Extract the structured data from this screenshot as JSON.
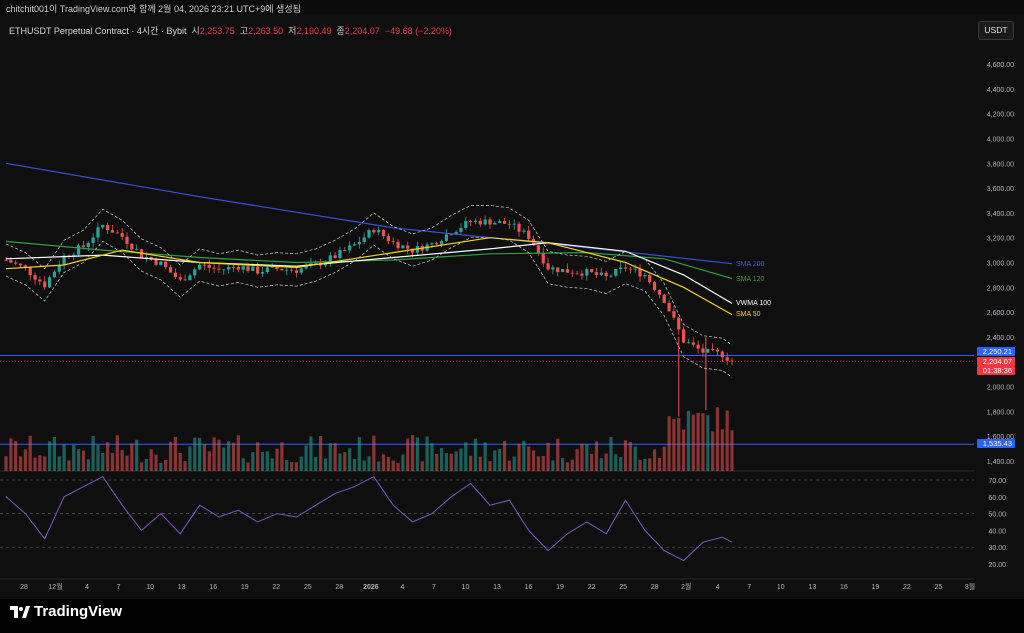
{
  "header": {
    "text": "chitchit001이 TradingView.com와 함께 2월 04, 2026 23:21 UTC+9에 생성됨"
  },
  "legend": {
    "symbol": "ETHUSDT Perpetual Contract · 4시간 · Bybit",
    "open_label": "시",
    "open": "2,253.75",
    "high_label": "고",
    "high": "2,263.50",
    "low_label": "저",
    "low": "2,190.49",
    "close_label": "종",
    "close": "2,204.07",
    "change": "−49.68 (−2.20%)"
  },
  "currency_button": "USDT",
  "footer": {
    "brand": "TradingView"
  },
  "colors": {
    "up": "#26a69a",
    "down": "#ef5350",
    "sma200": "#3f51d9",
    "sma120": "#2ea043",
    "vwma100": "#ffffff",
    "sma50": "#f2d21b",
    "rsi": "#7e57c2",
    "price_tag_red": "#f23645",
    "price_tag_blue": "#2962ff"
  },
  "chart_data": {
    "type": "candlestick",
    "title": "ETHUSDT Perpetual Contract · 4시간 · Bybit",
    "price_axis": {
      "ticks": [
        "4,600.00",
        "4,400.00",
        "4,200.00",
        "4,000.00",
        "3,800.00",
        "3,600.00",
        "3,400.00",
        "3,200.00",
        "3,000.00",
        "2,800.00",
        "2,600.00",
        "2,400.00",
        "2,000.00",
        "1,800.00",
        "1,600.00",
        "1,400.00"
      ],
      "ylim": [
        1400,
        4700
      ]
    },
    "rsi_axis": {
      "ticks": [
        "70.00",
        "60.00",
        "50.00",
        "40.00",
        "30.00",
        "20.00"
      ],
      "ylim": [
        10,
        80
      ]
    },
    "time_axis": {
      "ticks": [
        "28",
        "12월",
        "4",
        "7",
        "10",
        "13",
        "16",
        "19",
        "22",
        "25",
        "28",
        "2026",
        "4",
        "7",
        "10",
        "13",
        "16",
        "19",
        "22",
        "25",
        "28",
        "2월",
        "4",
        "7",
        "10",
        "13",
        "16",
        "19",
        "22",
        "25",
        "3월"
      ]
    },
    "price_path": [
      {
        "t": 0,
        "v": 3020
      },
      {
        "t": 2,
        "v": 2950
      },
      {
        "t": 4,
        "v": 2820
      },
      {
        "t": 6,
        "v": 3050
      },
      {
        "t": 8,
        "v": 3130
      },
      {
        "t": 10,
        "v": 3300
      },
      {
        "t": 12,
        "v": 3210
      },
      {
        "t": 14,
        "v": 3060
      },
      {
        "t": 16,
        "v": 2990
      },
      {
        "t": 18,
        "v": 2850
      },
      {
        "t": 20,
        "v": 2980
      },
      {
        "t": 22,
        "v": 2940
      },
      {
        "t": 24,
        "v": 2970
      },
      {
        "t": 26,
        "v": 2930
      },
      {
        "t": 28,
        "v": 2950
      },
      {
        "t": 30,
        "v": 2940
      },
      {
        "t": 32,
        "v": 2980
      },
      {
        "t": 34,
        "v": 3050
      },
      {
        "t": 36,
        "v": 3140
      },
      {
        "t": 38,
        "v": 3270
      },
      {
        "t": 40,
        "v": 3160
      },
      {
        "t": 42,
        "v": 3100
      },
      {
        "t": 44,
        "v": 3150
      },
      {
        "t": 46,
        "v": 3250
      },
      {
        "t": 48,
        "v": 3330
      },
      {
        "t": 50,
        "v": 3330
      },
      {
        "t": 52,
        "v": 3310
      },
      {
        "t": 54,
        "v": 3210
      },
      {
        "t": 56,
        "v": 2960
      },
      {
        "t": 58,
        "v": 2930
      },
      {
        "t": 60,
        "v": 2920
      },
      {
        "t": 62,
        "v": 2880
      },
      {
        "t": 64,
        "v": 2960
      },
      {
        "t": 66,
        "v": 2900
      },
      {
        "t": 68,
        "v": 2700
      },
      {
        "t": 70,
        "v": 2370
      },
      {
        "t": 72,
        "v": 2280
      },
      {
        "t": 74,
        "v": 2260
      },
      {
        "t": 75,
        "v": 2204
      }
    ],
    "series": [
      {
        "name": "SMA 200",
        "values": [
          {
            "t": 0,
            "v": 3800
          },
          {
            "t": 20,
            "v": 3530
          },
          {
            "t": 40,
            "v": 3280
          },
          {
            "t": 60,
            "v": 3120
          },
          {
            "t": 75,
            "v": 2990
          }
        ]
      },
      {
        "name": "SMA 120",
        "values": [
          {
            "t": 0,
            "v": 3170
          },
          {
            "t": 10,
            "v": 3100
          },
          {
            "t": 20,
            "v": 3040
          },
          {
            "t": 30,
            "v": 3000
          },
          {
            "t": 40,
            "v": 3020
          },
          {
            "t": 50,
            "v": 3070
          },
          {
            "t": 60,
            "v": 3080
          },
          {
            "t": 68,
            "v": 3030
          },
          {
            "t": 75,
            "v": 2870
          }
        ]
      },
      {
        "name": "VWMA 100",
        "values": [
          {
            "t": 0,
            "v": 3030
          },
          {
            "t": 10,
            "v": 3060
          },
          {
            "t": 20,
            "v": 3000
          },
          {
            "t": 30,
            "v": 2970
          },
          {
            "t": 40,
            "v": 3040
          },
          {
            "t": 50,
            "v": 3110
          },
          {
            "t": 56,
            "v": 3160
          },
          {
            "t": 64,
            "v": 3090
          },
          {
            "t": 70,
            "v": 2900
          },
          {
            "t": 75,
            "v": 2670
          }
        ]
      },
      {
        "name": "SMA 50",
        "values": [
          {
            "t": 0,
            "v": 2950
          },
          {
            "t": 6,
            "v": 2980
          },
          {
            "t": 12,
            "v": 3100
          },
          {
            "t": 20,
            "v": 3000
          },
          {
            "t": 30,
            "v": 2960
          },
          {
            "t": 40,
            "v": 3080
          },
          {
            "t": 50,
            "v": 3200
          },
          {
            "t": 56,
            "v": 3160
          },
          {
            "t": 64,
            "v": 3000
          },
          {
            "t": 70,
            "v": 2800
          },
          {
            "t": 75,
            "v": 2580
          }
        ]
      }
    ],
    "horizontal_lines": [
      {
        "label": "2,250.21",
        "value": 2250.21,
        "color": "#2962ff"
      },
      {
        "label": "1,535.43",
        "value": 1535.43,
        "color": "#2962ff"
      }
    ],
    "price_tags": [
      {
        "label": "2,250.21",
        "color": "#2962ff"
      },
      {
        "label": "2,204.07",
        "color": "#f23645"
      },
      {
        "label": "01:38:36",
        "color": "#f23645"
      },
      {
        "label": "1,535.43",
        "color": "#2962ff"
      }
    ],
    "rsi": [
      {
        "t": 0,
        "v": 60
      },
      {
        "t": 2,
        "v": 50
      },
      {
        "t": 4,
        "v": 35
      },
      {
        "t": 6,
        "v": 60
      },
      {
        "t": 8,
        "v": 66
      },
      {
        "t": 10,
        "v": 72
      },
      {
        "t": 12,
        "v": 55
      },
      {
        "t": 14,
        "v": 40
      },
      {
        "t": 16,
        "v": 50
      },
      {
        "t": 18,
        "v": 38
      },
      {
        "t": 20,
        "v": 55
      },
      {
        "t": 22,
        "v": 48
      },
      {
        "t": 24,
        "v": 52
      },
      {
        "t": 26,
        "v": 45
      },
      {
        "t": 28,
        "v": 50
      },
      {
        "t": 30,
        "v": 48
      },
      {
        "t": 32,
        "v": 55
      },
      {
        "t": 34,
        "v": 62
      },
      {
        "t": 36,
        "v": 66
      },
      {
        "t": 38,
        "v": 72
      },
      {
        "t": 40,
        "v": 55
      },
      {
        "t": 42,
        "v": 45
      },
      {
        "t": 44,
        "v": 50
      },
      {
        "t": 46,
        "v": 60
      },
      {
        "t": 48,
        "v": 68
      },
      {
        "t": 50,
        "v": 55
      },
      {
        "t": 52,
        "v": 58
      },
      {
        "t": 54,
        "v": 40
      },
      {
        "t": 56,
        "v": 28
      },
      {
        "t": 58,
        "v": 38
      },
      {
        "t": 60,
        "v": 45
      },
      {
        "t": 62,
        "v": 38
      },
      {
        "t": 64,
        "v": 58
      },
      {
        "t": 66,
        "v": 40
      },
      {
        "t": 68,
        "v": 28
      },
      {
        "t": 70,
        "v": 22
      },
      {
        "t": 72,
        "v": 33
      },
      {
        "t": 74,
        "v": 36
      },
      {
        "t": 75,
        "v": 33
      }
    ],
    "ma_labels": [
      "SMA 200",
      "SMA 120",
      "VWMA 100",
      "SMA 50"
    ]
  }
}
